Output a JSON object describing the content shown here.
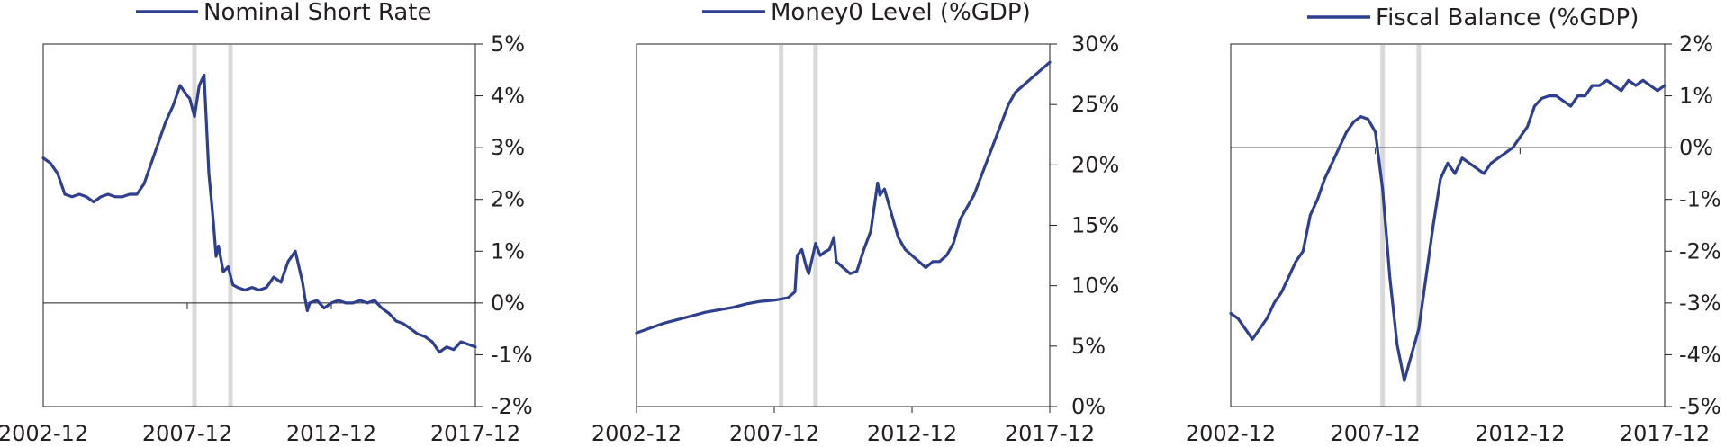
{
  "colors": {
    "series": "#2e3f8f",
    "recession": "#d9d9d9",
    "axis": "#231f20"
  },
  "chart_data": [
    {
      "type": "line",
      "grid": false,
      "legend_placement": "top",
      "series": [
        {
          "name": "Nominal Short Rate",
          "x": [
            "2002-12",
            "2003-03",
            "2003-06",
            "2003-09",
            "2003-12",
            "2004-03",
            "2004-06",
            "2004-09",
            "2004-12",
            "2005-03",
            "2005-06",
            "2005-09",
            "2005-12",
            "2006-03",
            "2006-06",
            "2006-09",
            "2006-12",
            "2007-03",
            "2007-06",
            "2007-09",
            "2007-12",
            "2008-01",
            "2008-03",
            "2008-05",
            "2008-07",
            "2008-09",
            "2008-10",
            "2008-11",
            "2008-12",
            "2009-01",
            "2009-03",
            "2009-05",
            "2009-07",
            "2009-09",
            "2009-12",
            "2010-03",
            "2010-06",
            "2010-09",
            "2010-12",
            "2011-03",
            "2011-06",
            "2011-09",
            "2011-12",
            "2012-01",
            "2012-02",
            "2012-03",
            "2012-06",
            "2012-09",
            "2012-12",
            "2013-03",
            "2013-06",
            "2013-09",
            "2013-12",
            "2014-03",
            "2014-06",
            "2014-09",
            "2014-12",
            "2015-03",
            "2015-06",
            "2015-09",
            "2015-12",
            "2016-03",
            "2016-06",
            "2016-09",
            "2016-12",
            "2017-03",
            "2017-06",
            "2017-09",
            "2017-12"
          ],
          "values": [
            2.8,
            2.7,
            2.5,
            2.1,
            2.05,
            2.1,
            2.05,
            1.95,
            2.05,
            2.1,
            2.05,
            2.05,
            2.1,
            2.1,
            2.3,
            2.7,
            3.1,
            3.5,
            3.8,
            4.2,
            4.0,
            3.95,
            3.6,
            4.2,
            4.4,
            2.5,
            2.0,
            1.5,
            0.9,
            1.1,
            0.6,
            0.7,
            0.35,
            0.3,
            0.25,
            0.3,
            0.25,
            0.3,
            0.5,
            0.4,
            0.8,
            1.0,
            0.4,
            0.1,
            -0.15,
            0.0,
            0.05,
            -0.1,
            0.0,
            0.05,
            0.0,
            0.0,
            0.05,
            0.0,
            0.05,
            -0.1,
            -0.2,
            -0.35,
            -0.4,
            -0.5,
            -0.6,
            -0.65,
            -0.75,
            -0.95,
            -0.85,
            -0.9,
            -0.75,
            -0.8,
            -0.85
          ]
        }
      ],
      "x_ticks": [
        "2002-12",
        "2007-12",
        "2012-12",
        "2017-12"
      ],
      "x_range": [
        "2002-12",
        "2017-12"
      ],
      "y_ticks": [
        "5%",
        "4%",
        "3%",
        "2%",
        "1%",
        "0%",
        "-1%",
        "-2%"
      ],
      "ylim": [
        -2,
        5
      ],
      "y_axis_side": "right",
      "recession_bands": [
        "2008-03",
        "2009-06"
      ]
    },
    {
      "type": "line",
      "grid": false,
      "legend_placement": "top",
      "series": [
        {
          "name": "Money0 Level (%GDP)",
          "x": [
            "2002-12",
            "2003-06",
            "2003-12",
            "2004-06",
            "2004-12",
            "2005-06",
            "2005-12",
            "2006-06",
            "2006-12",
            "2007-06",
            "2007-12",
            "2008-03",
            "2008-06",
            "2008-09",
            "2008-10",
            "2008-12",
            "2009-02",
            "2009-03",
            "2009-06",
            "2009-08",
            "2009-10",
            "2009-12",
            "2010-02",
            "2010-03",
            "2010-06",
            "2010-09",
            "2010-12",
            "2011-03",
            "2011-06",
            "2011-09",
            "2011-10",
            "2011-12",
            "2012-03",
            "2012-06",
            "2012-09",
            "2012-12",
            "2013-03",
            "2013-06",
            "2013-09",
            "2013-12",
            "2014-03",
            "2014-06",
            "2014-09",
            "2014-12",
            "2015-03",
            "2015-06",
            "2015-09",
            "2015-12",
            "2016-03",
            "2016-06",
            "2016-09",
            "2016-12",
            "2017-03",
            "2017-06",
            "2017-09",
            "2017-12"
          ],
          "values": [
            6.1,
            6.5,
            6.9,
            7.2,
            7.5,
            7.8,
            8.0,
            8.2,
            8.5,
            8.7,
            8.8,
            8.9,
            9.0,
            9.5,
            12.5,
            13.0,
            11.5,
            11.0,
            13.5,
            12.5,
            12.8,
            13.0,
            14.0,
            12.0,
            11.5,
            11.0,
            11.2,
            13.0,
            14.5,
            18.5,
            17.5,
            18.0,
            16.0,
            14.0,
            13.0,
            12.5,
            12.0,
            11.5,
            12.0,
            12.0,
            12.5,
            13.5,
            15.5,
            16.5,
            17.5,
            19.0,
            20.5,
            22.0,
            23.5,
            25.0,
            26.0,
            26.5,
            27.0,
            27.5,
            28.0,
            28.5
          ]
        }
      ],
      "x_ticks": [
        "2002-12",
        "2007-12",
        "2012-12",
        "2017-12"
      ],
      "x_range": [
        "2002-12",
        "2017-12"
      ],
      "y_ticks": [
        "30%",
        "25%",
        "20%",
        "15%",
        "10%",
        "5%",
        "0%"
      ],
      "ylim": [
        0,
        30
      ],
      "y_axis_side": "right",
      "recession_bands": [
        "2008-03",
        "2009-06"
      ]
    },
    {
      "type": "line",
      "grid": false,
      "legend_placement": "top",
      "series": [
        {
          "name": "Fiscal Balance (%GDP)",
          "x": [
            "2002-12",
            "2003-03",
            "2003-06",
            "2003-09",
            "2003-12",
            "2004-03",
            "2004-06",
            "2004-09",
            "2004-12",
            "2005-03",
            "2005-06",
            "2005-09",
            "2005-12",
            "2006-03",
            "2006-06",
            "2006-09",
            "2006-12",
            "2007-03",
            "2007-06",
            "2007-09",
            "2007-12",
            "2008-03",
            "2008-06",
            "2008-09",
            "2008-12",
            "2009-03",
            "2009-06",
            "2009-09",
            "2009-12",
            "2010-03",
            "2010-06",
            "2010-09",
            "2010-12",
            "2011-03",
            "2011-06",
            "2011-09",
            "2011-12",
            "2012-03",
            "2012-06",
            "2012-09",
            "2012-12",
            "2013-03",
            "2013-06",
            "2013-09",
            "2013-12",
            "2014-03",
            "2014-06",
            "2014-09",
            "2014-12",
            "2015-03",
            "2015-06",
            "2015-09",
            "2015-12",
            "2016-03",
            "2016-06",
            "2016-09",
            "2016-12",
            "2017-03",
            "2017-06",
            "2017-09",
            "2017-12"
          ],
          "values": [
            -3.2,
            -3.3,
            -3.5,
            -3.7,
            -3.5,
            -3.3,
            -3.0,
            -2.8,
            -2.5,
            -2.2,
            -2.0,
            -1.3,
            -1.0,
            -0.6,
            -0.3,
            0.0,
            0.3,
            0.5,
            0.6,
            0.55,
            0.3,
            -0.8,
            -2.5,
            -3.8,
            -4.5,
            -4.0,
            -3.5,
            -2.5,
            -1.5,
            -0.6,
            -0.3,
            -0.5,
            -0.2,
            -0.3,
            -0.4,
            -0.5,
            -0.3,
            -0.2,
            -0.1,
            0.0,
            0.2,
            0.4,
            0.8,
            0.95,
            1.0,
            1.0,
            0.9,
            0.8,
            1.0,
            1.0,
            1.2,
            1.2,
            1.3,
            1.2,
            1.1,
            1.3,
            1.2,
            1.3,
            1.2,
            1.1,
            1.2
          ]
        }
      ],
      "x_ticks": [
        "2002-12",
        "2007-12",
        "2012-12",
        "2017-12"
      ],
      "x_range": [
        "2002-12",
        "2017-12"
      ],
      "y_ticks": [
        "2%",
        "1%",
        "0%",
        "-1%",
        "-2%",
        "-3%",
        "-4%",
        "-5%"
      ],
      "ylim": [
        -5,
        2
      ],
      "y_axis_side": "right",
      "recession_bands": [
        "2008-03",
        "2009-06"
      ]
    }
  ]
}
